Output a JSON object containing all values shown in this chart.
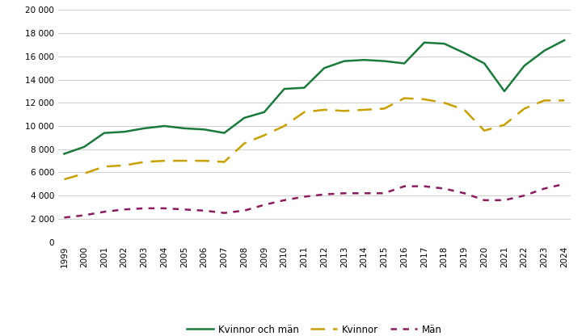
{
  "years": [
    1999,
    2000,
    2001,
    2002,
    2003,
    2004,
    2005,
    2006,
    2007,
    2008,
    2009,
    2010,
    2011,
    2012,
    2013,
    2014,
    2015,
    2016,
    2017,
    2018,
    2019,
    2020,
    2021,
    2022,
    2023,
    2024
  ],
  "kvinnor_och_man": [
    7600,
    8200,
    9400,
    9500,
    9800,
    10000,
    9800,
    9700,
    9400,
    10700,
    11200,
    13200,
    13300,
    15000,
    15600,
    15700,
    15600,
    15400,
    17200,
    17100,
    16300,
    15400,
    13000,
    15200,
    16500,
    17400
  ],
  "kvinnor": [
    5400,
    5900,
    6500,
    6600,
    6900,
    7000,
    7000,
    7000,
    6900,
    8500,
    9200,
    10000,
    11200,
    11400,
    11300,
    11400,
    11500,
    12400,
    12300,
    12000,
    11400,
    9600,
    10100,
    11500,
    12200,
    12200
  ],
  "man": [
    2100,
    2300,
    2600,
    2800,
    2900,
    2900,
    2800,
    2700,
    2500,
    2700,
    3200,
    3600,
    3900,
    4100,
    4200,
    4200,
    4200,
    4800,
    4800,
    4600,
    4200,
    3600,
    3600,
    4000,
    4600,
    5000
  ],
  "color_kvman": "#1a7a3c",
  "color_kv": "#c8a000",
  "color_man": "#8b1a5e",
  "ylim": [
    0,
    20000
  ],
  "yticks": [
    0,
    2000,
    4000,
    6000,
    8000,
    10000,
    12000,
    14000,
    16000,
    18000,
    20000
  ],
  "legend_labels": [
    "Kvinnor och män",
    "Kvinnor",
    "Män"
  ],
  "bg_color": "#ffffff",
  "grid_color": "#d0d0d0"
}
